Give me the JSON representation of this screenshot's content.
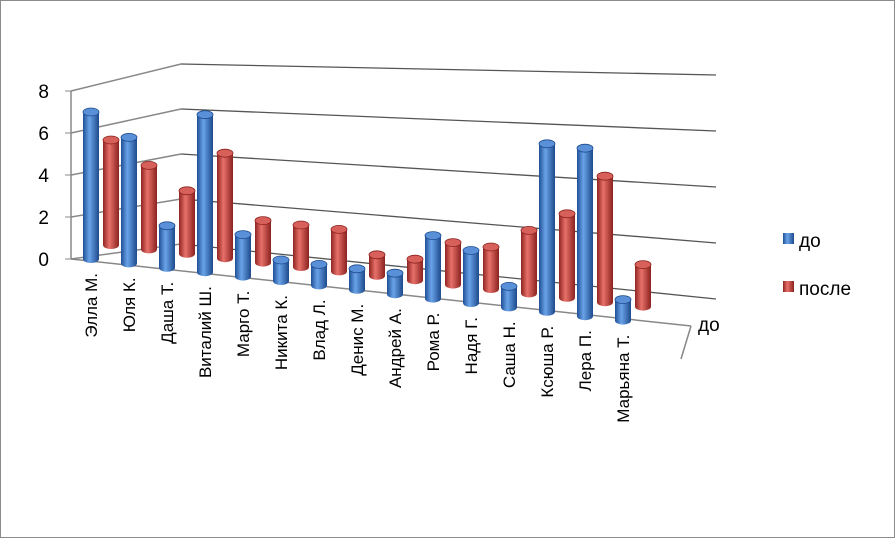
{
  "chart_data": {
    "type": "bar",
    "title": "",
    "xlabel": "",
    "ylabel": "",
    "ylim": [
      0,
      8
    ],
    "yticks": [
      "0",
      "2",
      "4",
      "6",
      "8"
    ],
    "depth_axis_label": "до",
    "categories": [
      "Элла М.",
      "Юля К.",
      "Даша Т.",
      "Виталий Ш.",
      "Марго Т.",
      "Никита К.",
      "Влад Л.",
      "Денис М.",
      "Андрей А.",
      "Рома Р.",
      "Надя Г.",
      "Саша Н.",
      "Ксюша Р.",
      "Лера П.",
      "Марьяна Т."
    ],
    "series": [
      {
        "name": "до",
        "color": "#3c78c8",
        "values": [
          7,
          6,
          2,
          7.5,
          2,
          1,
          1,
          1,
          1,
          3,
          2.5,
          1,
          8,
          8,
          1
        ]
      },
      {
        "name": "после",
        "color": "#c8403c",
        "values": [
          5,
          4,
          3,
          5,
          2,
          2,
          2,
          1,
          1,
          2,
          2,
          3,
          4,
          6,
          2
        ]
      }
    ],
    "grid": true,
    "legend": "right"
  }
}
